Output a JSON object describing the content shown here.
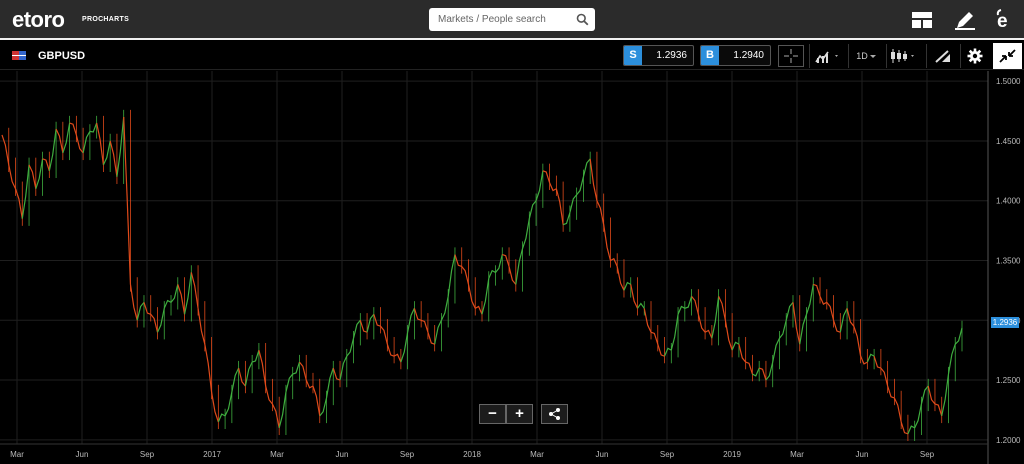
{
  "app": {
    "logo_text": "etoro",
    "logo_sub": "PROCHARTS",
    "search_placeholder": "Markets / People search"
  },
  "instrument": {
    "symbol": "GBPUSD",
    "sell_tag": "S",
    "sell_price": "1.2936",
    "buy_tag": "B",
    "buy_price": "1.2940",
    "interval": "1D"
  },
  "toolbar_icons": [
    "layout-icon",
    "pen-icon",
    "etoro-e-icon",
    "crosshair-icon",
    "chart-type-icon",
    "interval-dropdown",
    "candlestick-icon",
    "drawing-icon",
    "gear-icon",
    "collapse-icon"
  ],
  "colors": {
    "bull": "#3fae3f",
    "bear": "#e04a1a",
    "accent": "#2c8fdc",
    "grid": "#1f1f1f"
  },
  "chart_data": {
    "type": "line",
    "series": [
      {
        "values": [
          1.455,
          1.43,
          1.41,
          1.385,
          1.43,
          1.41,
          1.435,
          1.425,
          1.46,
          1.44,
          1.465,
          1.455,
          1.44,
          1.458,
          1.465,
          1.43,
          1.45,
          1.42,
          1.47,
          1.33,
          1.3,
          1.315,
          1.305,
          1.29,
          1.31,
          1.315,
          1.33,
          1.305,
          1.34,
          1.31,
          1.28,
          1.24,
          1.215,
          1.22,
          1.24,
          1.26,
          1.245,
          1.265,
          1.275,
          1.245,
          1.23,
          1.21,
          1.24,
          1.255,
          1.265,
          1.25,
          1.245,
          1.22,
          1.235,
          1.26,
          1.25,
          1.27,
          1.285,
          1.3,
          1.29,
          1.305,
          1.295,
          1.28,
          1.27,
          1.265,
          1.29,
          1.31,
          1.3,
          1.29,
          1.28,
          1.3,
          1.32,
          1.355,
          1.345,
          1.33,
          1.31,
          1.305,
          1.335,
          1.34,
          1.355,
          1.345,
          1.33,
          1.36,
          1.385,
          1.4,
          1.425,
          1.415,
          1.41,
          1.38,
          1.39,
          1.405,
          1.42,
          1.435,
          1.4,
          1.38,
          1.35,
          1.345,
          1.325,
          1.33,
          1.31,
          1.31,
          1.29,
          1.28,
          1.27,
          1.275,
          1.305,
          1.31,
          1.32,
          1.305,
          1.29,
          1.285,
          1.32,
          1.3,
          1.275,
          1.28,
          1.265,
          1.255,
          1.26,
          1.25,
          1.265,
          1.285,
          1.3,
          1.315,
          1.28,
          1.305,
          1.33,
          1.32,
          1.315,
          1.3,
          1.29,
          1.31,
          1.295,
          1.27,
          1.265,
          1.27,
          1.26,
          1.245,
          1.235,
          1.215,
          1.205,
          1.21,
          1.23,
          1.245,
          1.23,
          1.22,
          1.255,
          1.28,
          1.2936
        ]
      }
    ],
    "y_ticks": [
      "1.5000",
      "1.4500",
      "1.4000",
      "1.3500",
      "1.3000",
      "1.2500",
      "1.2000"
    ],
    "y_range": [
      1.1965,
      1.5085
    ],
    "x_ticks": [
      "Mar",
      "Jun",
      "Sep",
      "2017",
      "Mar",
      "Jun",
      "Sep",
      "2018",
      "Mar",
      "Jun",
      "Sep",
      "2019",
      "Mar",
      "Jun",
      "Sep"
    ],
    "last_price_label": "1.2936"
  },
  "controls": {
    "zoom_out": "−",
    "zoom_in": "+"
  }
}
